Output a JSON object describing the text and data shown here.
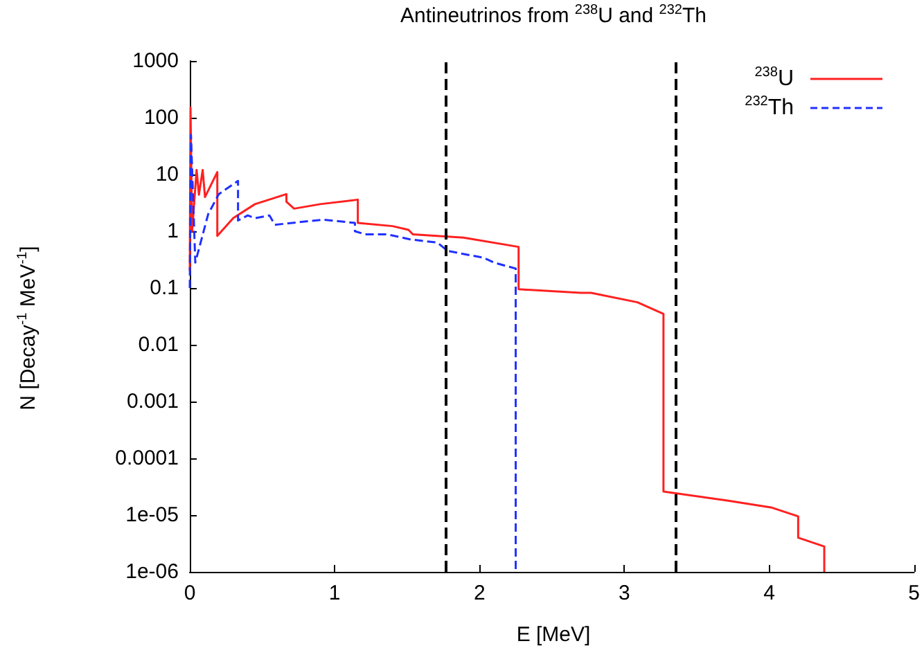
{
  "chart_data": {
    "type": "line",
    "title": "Antineutrinos from $^{238}$U and $^{232}$Th",
    "xlabel": "E [MeV]",
    "ylabel": "N [Decay$^{-1}$ MeV$^{-1}$]",
    "log": "y",
    "grid": false,
    "legend": "top right",
    "marker": "none",
    "xlim": [
      0,
      5
    ],
    "xticks": [
      0,
      1,
      2,
      3,
      4,
      5
    ],
    "ylim": [
      1e-06,
      1000
    ],
    "yticks": [
      {
        "value": 1e-06,
        "label": "1e-06"
      },
      {
        "value": 1e-05,
        "label": "1e-05"
      },
      0.0001,
      0.001,
      0.01,
      0.1,
      1,
      10,
      100,
      1000
    ],
    "ref_lines": [
      {
        "axis": "x",
        "value": 1.77,
        "label": null,
        "color": "#000000",
        "line_style": "dashed"
      },
      {
        "axis": "x",
        "value": 3.35,
        "label": null,
        "color": "#000000",
        "line_style": "dashed"
      }
    ],
    "series": [
      {
        "name": "$^{238}$U",
        "color": "#ff2020",
        "line_style": "solid",
        "x": [
          0,
          0.005,
          0.016,
          0.047,
          0.063,
          0.089,
          0.105,
          0.19,
          0.19,
          0.3,
          0.45,
          0.667,
          0.667,
          0.72,
          0.9,
          1.16,
          1.16,
          1.4,
          1.51,
          1.54,
          1.89,
          2.27,
          2.27,
          2.7,
          2.77,
          3.09,
          3.27,
          3.27,
          3.71,
          4.02,
          4.2,
          4.2,
          4.38,
          4.38
        ],
        "values": [
          0.2,
          150,
          1,
          12,
          4.4,
          12,
          4,
          11,
          0.83,
          1.7,
          3,
          4.5,
          3.3,
          2.5,
          3,
          3.6,
          1.4,
          1.23,
          1.06,
          0.88,
          0.77,
          0.53,
          0.095,
          0.082,
          0.082,
          0.056,
          0.035,
          2.6e-05,
          1.8e-05,
          1.35e-05,
          9.5e-06,
          4e-06,
          2.8e-06,
          1e-06
        ]
      },
      {
        "name": "$^{232}$Th",
        "color": "#2030ff",
        "line_style": "dashed",
        "x": [
          0,
          0.008,
          0.038,
          0.127,
          0.2,
          0.333,
          0.333,
          0.4,
          0.45,
          0.55,
          0.587,
          0.92,
          1.14,
          1.14,
          1.21,
          1.365,
          1.52,
          1.71,
          1.78,
          2.03,
          2.1,
          2.25,
          2.25
        ],
        "values": [
          0.1,
          50,
          0.28,
          2,
          4.5,
          7.7,
          1.55,
          1.9,
          1.7,
          1.9,
          1.3,
          1.6,
          1.4,
          1,
          0.88,
          0.88,
          0.72,
          0.63,
          0.45,
          0.34,
          0.28,
          0.22,
          1e-06
        ]
      }
    ]
  }
}
